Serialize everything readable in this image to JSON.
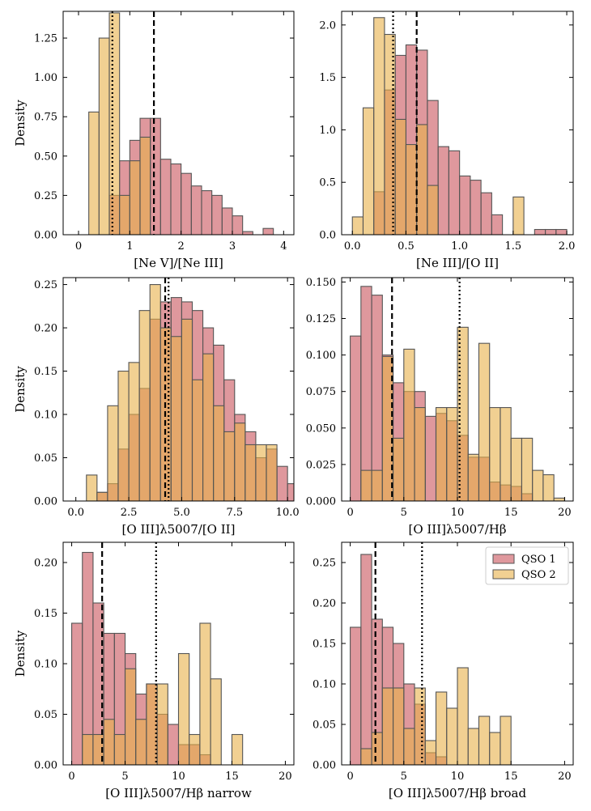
{
  "colors": {
    "qso1": "#c9535c",
    "qso2": "#e8b04a",
    "bar_edge": "#555555",
    "bar_opacity": 0.6,
    "axis": "#000000"
  },
  "legend": {
    "placement": "top-right",
    "panel": 5,
    "entries": [
      {
        "key": "qso1",
        "label": "QSO 1"
      },
      {
        "key": "qso2",
        "label": "QSO 2"
      }
    ]
  },
  "chart_data": [
    {
      "type": "histogram",
      "panel": 0,
      "xlabel": "[Ne V]/[Ne III]",
      "ylabel": "Density",
      "xlim": [
        -0.3,
        4.2
      ],
      "ylim": [
        0,
        1.42
      ],
      "xticks": [
        0,
        1,
        2,
        3,
        4
      ],
      "xticklabels": [
        "0",
        "1",
        "2",
        "3",
        "4"
      ],
      "yticks": [
        0,
        0.25,
        0.5,
        0.75,
        1.0,
        1.25
      ],
      "yticklabels": [
        "0.00",
        "0.25",
        "0.50",
        "0.75",
        "1.00",
        "1.25"
      ],
      "series": [
        {
          "name": "QSO 1",
          "key": "qso1",
          "bin_start": 0.2,
          "bin_width": 0.2,
          "values": [
            0.0,
            0.0,
            0.25,
            0.47,
            0.6,
            0.74,
            0.74,
            0.48,
            0.45,
            0.39,
            0.31,
            0.28,
            0.25,
            0.17,
            0.12,
            0.02,
            0.0,
            0.04
          ]
        },
        {
          "name": "QSO 2",
          "key": "qso2",
          "bin_start": 0.2,
          "bin_width": 0.2,
          "values": [
            0.78,
            1.25,
            1.41,
            0.25,
            0.47,
            0.62,
            0.0,
            0.0,
            0.0,
            0.0,
            0.0,
            0.0,
            0.0,
            0.0,
            0.0,
            0.0,
            0.0,
            0.0
          ]
        }
      ],
      "vlines": [
        {
          "x": 1.47,
          "style": "dashed"
        },
        {
          "x": 0.66,
          "style": "dotted"
        }
      ]
    },
    {
      "type": "histogram",
      "panel": 1,
      "xlabel": "[Ne III]/[O II]",
      "ylabel": "",
      "xlim": [
        -0.1,
        2.06
      ],
      "ylim": [
        0,
        2.13
      ],
      "xticks": [
        0,
        0.5,
        1,
        1.5,
        2
      ],
      "xticklabels": [
        "0.0",
        "0.5",
        "1.0",
        "1.5",
        "2.0"
      ],
      "yticks": [
        0,
        0.5,
        1.0,
        1.5,
        2.0
      ],
      "yticklabels": [
        "0.0",
        "0.5",
        "1.0",
        "1.5",
        "2.0"
      ],
      "series": [
        {
          "name": "QSO 1",
          "key": "qso1",
          "bin_start": 0.0,
          "bin_width": 0.1,
          "values": [
            0.0,
            0.0,
            0.41,
            1.38,
            1.71,
            1.81,
            1.76,
            1.28,
            0.84,
            0.8,
            0.56,
            0.52,
            0.4,
            0.19,
            0.0,
            0.0,
            0.0,
            0.05,
            0.05,
            0.05
          ]
        },
        {
          "name": "QSO 2",
          "key": "qso2",
          "bin_start": 0.0,
          "bin_width": 0.1,
          "values": [
            0.17,
            1.21,
            2.07,
            1.91,
            1.1,
            0.86,
            1.05,
            0.47,
            0.0,
            0.0,
            0.0,
            0.0,
            0.0,
            0.0,
            0.0,
            0.36,
            0.0,
            0.0,
            0.0,
            0.0
          ]
        }
      ],
      "vlines": [
        {
          "x": 0.6,
          "style": "dashed"
        },
        {
          "x": 0.38,
          "style": "dotted"
        }
      ]
    },
    {
      "type": "histogram",
      "panel": 2,
      "xlabel": "[O III]λ5007/[O II]",
      "ylabel": "Density",
      "xlim": [
        -0.6,
        10.3
      ],
      "ylim": [
        0,
        0.258
      ],
      "xticks": [
        0,
        2.5,
        5,
        7.5,
        10
      ],
      "xticklabels": [
        "0.0",
        "2.5",
        "5.0",
        "7.5",
        "10.0"
      ],
      "yticks": [
        0,
        0.05,
        0.1,
        0.15,
        0.2,
        0.25
      ],
      "yticklabels": [
        "0.00",
        "0.05",
        "0.10",
        "0.15",
        "0.20",
        "0.25"
      ],
      "series": [
        {
          "name": "QSO 1",
          "key": "qso1",
          "bin_start": 0.5,
          "bin_width": 0.5,
          "values": [
            0.0,
            0.01,
            0.02,
            0.06,
            0.1,
            0.13,
            0.21,
            0.23,
            0.235,
            0.23,
            0.22,
            0.2,
            0.18,
            0.14,
            0.1,
            0.08,
            0.05,
            0.06,
            0.04,
            0.02
          ]
        },
        {
          "name": "QSO 2",
          "key": "qso2",
          "bin_start": 0.5,
          "bin_width": 0.5,
          "values": [
            0.03,
            0.01,
            0.11,
            0.15,
            0.16,
            0.22,
            0.25,
            0.2,
            0.19,
            0.21,
            0.14,
            0.17,
            0.11,
            0.08,
            0.09,
            0.065,
            0.065,
            0.065,
            0.0,
            0.0
          ]
        }
      ],
      "vlines": [
        {
          "x": 4.22,
          "style": "dashed"
        },
        {
          "x": 4.38,
          "style": "dotted"
        }
      ]
    },
    {
      "type": "histogram",
      "panel": 3,
      "xlabel": "[O III]λ5007/Hβ",
      "ylabel": "",
      "xlim": [
        -0.8,
        20.8
      ],
      "ylim": [
        0,
        0.153
      ],
      "xticks": [
        0,
        5,
        10,
        15,
        20
      ],
      "xticklabels": [
        "0",
        "5",
        "10",
        "15",
        "20"
      ],
      "yticks": [
        0,
        0.025,
        0.05,
        0.075,
        0.1,
        0.125,
        0.15
      ],
      "yticklabels": [
        "0.000",
        "0.025",
        "0.050",
        "0.075",
        "0.100",
        "0.125",
        "0.150"
      ],
      "series": [
        {
          "name": "QSO 1",
          "key": "qso1",
          "bin_start": 0.0,
          "bin_width": 1.0,
          "values": [
            0.113,
            0.147,
            0.141,
            0.1,
            0.081,
            0.075,
            0.075,
            0.058,
            0.06,
            0.055,
            0.045,
            0.03,
            0.03,
            0.013,
            0.011,
            0.01,
            0.005,
            0.0,
            0.0,
            0.0
          ]
        },
        {
          "name": "QSO 2",
          "key": "qso2",
          "bin_start": 0.0,
          "bin_width": 1.0,
          "values": [
            0.0,
            0.021,
            0.021,
            0.099,
            0.043,
            0.104,
            0.064,
            0.0,
            0.064,
            0.064,
            0.119,
            0.032,
            0.108,
            0.064,
            0.064,
            0.043,
            0.043,
            0.021,
            0.018,
            0.002
          ]
        }
      ],
      "vlines": [
        {
          "x": 3.9,
          "style": "dashed"
        },
        {
          "x": 10.2,
          "style": "dotted"
        }
      ]
    },
    {
      "type": "histogram",
      "panel": 4,
      "xlabel": "[O III]λ5007/Hβ narrow",
      "ylabel": "Density",
      "xlim": [
        -0.8,
        20.8
      ],
      "ylim": [
        0,
        0.22
      ],
      "xticks": [
        0,
        5,
        10,
        15,
        20
      ],
      "xticklabels": [
        "0",
        "5",
        "10",
        "15",
        "20"
      ],
      "yticks": [
        0,
        0.05,
        0.1,
        0.15,
        0.2
      ],
      "yticklabels": [
        "0.00",
        "0.05",
        "0.10",
        "0.15",
        "0.20"
      ],
      "series": [
        {
          "name": "QSO 1",
          "key": "qso1",
          "bin_start": 0.0,
          "bin_width": 1.0,
          "values": [
            0.14,
            0.21,
            0.16,
            0.13,
            0.13,
            0.11,
            0.07,
            0.08,
            0.05,
            0.04,
            0.02,
            0.02,
            0.01,
            0.0,
            0.0,
            0.0,
            0.0,
            0.0,
            0.0,
            0.0
          ]
        },
        {
          "name": "QSO 2",
          "key": "qso2",
          "bin_start": 0.0,
          "bin_width": 1.0,
          "values": [
            0.0,
            0.03,
            0.03,
            0.045,
            0.03,
            0.095,
            0.045,
            0.08,
            0.08,
            0.0,
            0.11,
            0.03,
            0.14,
            0.085,
            0.0,
            0.03,
            0.0,
            0.0,
            0.0,
            0.0
          ]
        }
      ],
      "vlines": [
        {
          "x": 2.85,
          "style": "dashed"
        },
        {
          "x": 7.9,
          "style": "dotted"
        }
      ]
    },
    {
      "type": "histogram",
      "panel": 5,
      "xlabel": "[O III]λ5007/Hβ broad",
      "ylabel": "",
      "xlim": [
        -0.8,
        20.8
      ],
      "ylim": [
        0,
        0.275
      ],
      "xticks": [
        0,
        5,
        10,
        15,
        20
      ],
      "xticklabels": [
        "0",
        "5",
        "10",
        "15",
        "20"
      ],
      "yticks": [
        0,
        0.05,
        0.1,
        0.15,
        0.2,
        0.25
      ],
      "yticklabels": [
        "0.00",
        "0.05",
        "0.10",
        "0.15",
        "0.20",
        "0.25"
      ],
      "series": [
        {
          "name": "QSO 1",
          "key": "qso1",
          "bin_start": 0.0,
          "bin_width": 1.0,
          "values": [
            0.17,
            0.26,
            0.18,
            0.17,
            0.15,
            0.1,
            0.075,
            0.015,
            0.01,
            0.0,
            0.0,
            0.0,
            0.0,
            0.0,
            0.0,
            0.0,
            0.0,
            0.0,
            0.0,
            0.0
          ]
        },
        {
          "name": "QSO 2",
          "key": "qso2",
          "bin_start": 0.0,
          "bin_width": 1.0,
          "values": [
            0.0,
            0.02,
            0.04,
            0.095,
            0.095,
            0.045,
            0.095,
            0.03,
            0.09,
            0.07,
            0.12,
            0.045,
            0.06,
            0.04,
            0.06,
            0.0,
            0.0,
            0.0,
            0.0,
            0.0
          ]
        }
      ],
      "vlines": [
        {
          "x": 2.35,
          "style": "dashed"
        },
        {
          "x": 6.7,
          "style": "dotted"
        }
      ]
    }
  ]
}
